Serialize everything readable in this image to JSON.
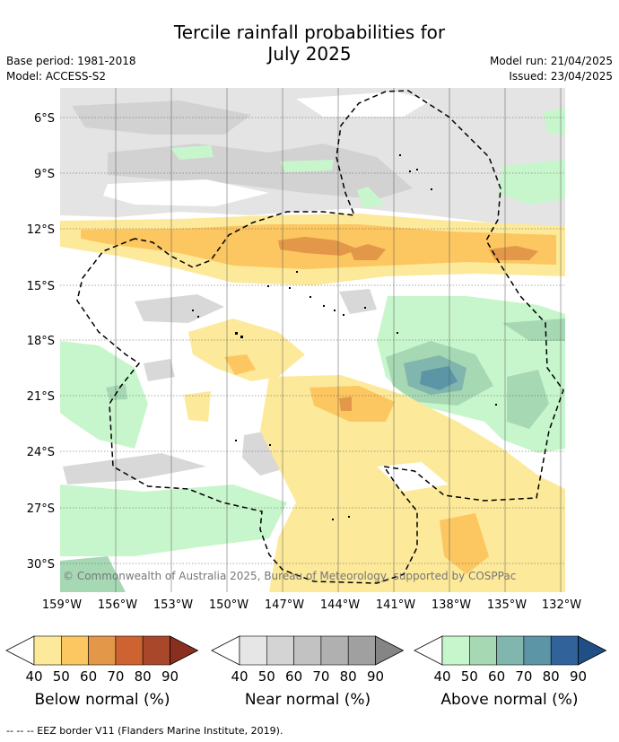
{
  "title_line1": "Tercile rainfall probabilities for",
  "title_line2": "July 2025",
  "base_period": "Base period: 1981-2018",
  "model": "Model: ACCESS-S2",
  "model_run": "Model run: 21/04/2025",
  "issued": "Issued: 23/04/2025",
  "lat_labels": [
    "6°S",
    "9°S",
    "12°S",
    "15°S",
    "18°S",
    "21°S",
    "24°S",
    "27°S",
    "30°S"
  ],
  "lon_labels": [
    "159°W",
    "156°W",
    "153°W",
    "150°W",
    "147°W",
    "144°W",
    "141°W",
    "138°W",
    "135°W",
    "132°W"
  ],
  "copyright": "© Commonwealth of Australia 2025, Bureau of Meteorology, supported by COSPPac",
  "legends": [
    {
      "title": "Below normal (%)",
      "ticks": [
        "40",
        "50",
        "60",
        "70",
        "80",
        "90"
      ],
      "colors": [
        "#fde99a",
        "#fcc660",
        "#e39748",
        "#cc6331",
        "#a8472a",
        "#8a2f1f"
      ]
    },
    {
      "title": "Near normal (%)",
      "ticks": [
        "40",
        "50",
        "60",
        "70",
        "80",
        "90"
      ],
      "colors": [
        "#e6e6e6",
        "#d4d4d4",
        "#c2c2c2",
        "#b0b0b0",
        "#a0a0a0",
        "#858585"
      ]
    },
    {
      "title": "Above normal (%)",
      "ticks": [
        "40",
        "50",
        "60",
        "70",
        "80",
        "90"
      ],
      "colors": [
        "#c8f6cc",
        "#a6d8b4",
        "#80b6ad",
        "#5c95a5",
        "#31629a",
        "#204f86"
      ]
    }
  ],
  "footer": "--  --  -- EEZ border V11 (Flanders Marine Institute, 2019)."
}
